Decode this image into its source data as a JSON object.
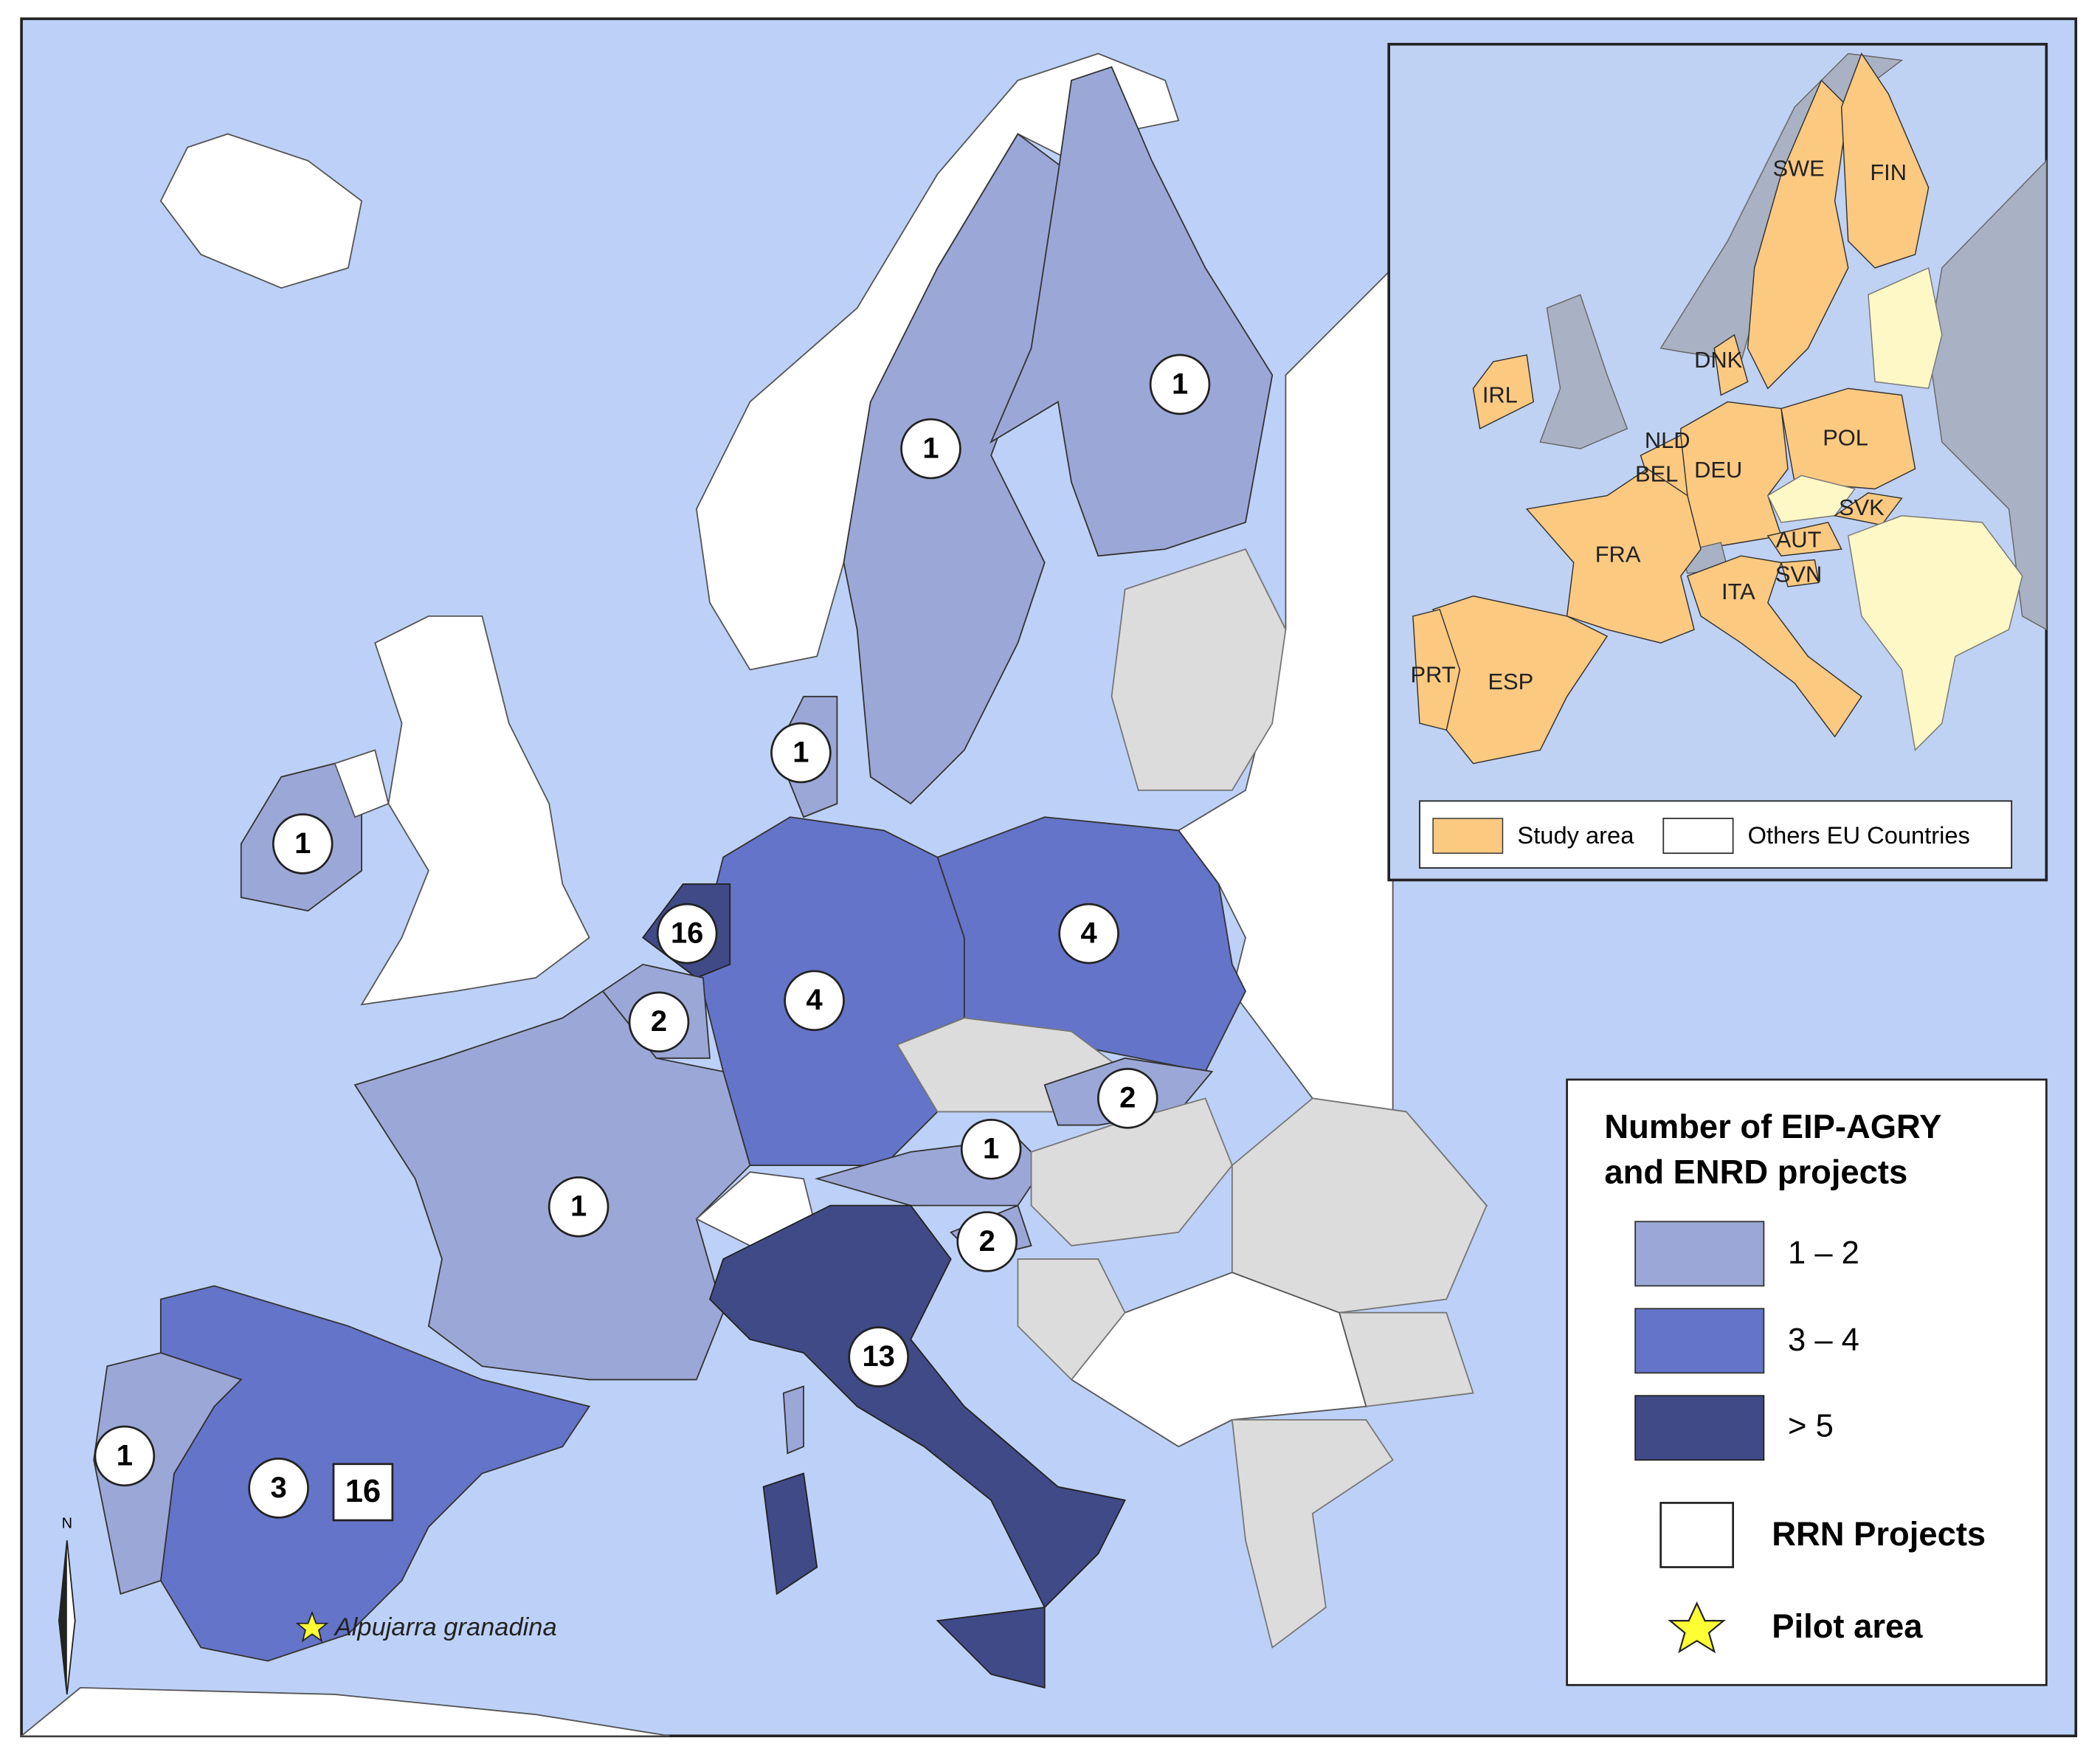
{
  "map": {
    "project_counts": [
      1,
      1,
      1,
      1,
      16,
      2,
      4,
      4,
      2,
      1,
      2,
      1,
      13,
      1,
      3
    ],
    "rrn_project_count": 16,
    "pilot_area": "Alpujarra granadina",
    "north": "N"
  },
  "inset": {
    "country_codes": [
      "SWE",
      "FIN",
      "DNK",
      "IRL",
      "NLD",
      "BEL",
      "DEU",
      "POL",
      "SVK",
      "AUT",
      "SVN",
      "FRA",
      "ITA",
      "PRT",
      "ESP"
    ],
    "legend": [
      "Study area",
      "Others EU Countries"
    ]
  },
  "legend": {
    "title": [
      "Number of EIP-AGRY",
      "and ENRD projects"
    ],
    "classes": [
      "1 – 2",
      "3 – 4",
      "> 5"
    ],
    "rrn": "RRN Projects",
    "pilot": "Pilot area"
  }
}
